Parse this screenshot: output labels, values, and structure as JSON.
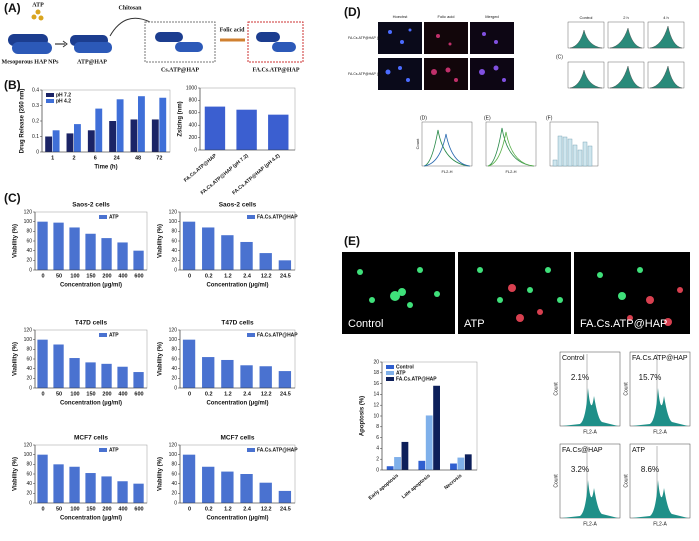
{
  "schematic": {
    "label": "(A)",
    "atp": "ATP",
    "chitosan": "Chitosan",
    "folic_acid": "Folic acid",
    "hap": "Mesoporous HAP NPs",
    "atp_hap": "ATP@HAP",
    "cs_atp_hap": "Cs.ATP@HAP",
    "fa_cs_atp_hap": "FA.Cs.ATP@HAP"
  },
  "panel_labels": {
    "b": "(B)",
    "c": "(C)",
    "d": "(D)",
    "e": "(E)"
  },
  "microscopy_d": {
    "columns": [
      "Hoechst",
      "Folic acid",
      "Merged"
    ],
    "rows": [
      "FA.Cs.ATP@HAP (2 h)",
      "FA.Cs.ATP@HAP (4 h)"
    ],
    "flow_headers": [
      "Control",
      "2 h",
      "4 h"
    ],
    "sublabels": [
      "(C)",
      "(D)",
      "(E)",
      "(F)"
    ],
    "count": "Count",
    "fl2h": "FL2-H"
  },
  "images_e": [
    "Control",
    "ATP",
    "FA.Cs.ATP@HAP"
  ],
  "flow_e": {
    "panels": [
      {
        "title": "Control",
        "percent": "2.1%"
      },
      {
        "title": "FA.Cs.ATP@HAP",
        "percent": "15.7%"
      },
      {
        "title": "FA.Cs@HAP",
        "percent": "3.2%"
      },
      {
        "title": "ATP",
        "percent": "8.6%"
      }
    ],
    "x_label": "FL2-A",
    "y_label": "Count"
  },
  "chart_data": [
    {
      "type": "bar",
      "xlabel": "Time (h)",
      "ylabel": "Drug Release (260 nm)",
      "categories": [
        "1",
        "2",
        "6",
        "24",
        "48",
        "72"
      ],
      "series": [
        {
          "name": "pH 7.2",
          "color": "#1b2466",
          "values": [
            0.1,
            0.12,
            0.14,
            0.2,
            0.21,
            0.21
          ]
        },
        {
          "name": "pH 4.2",
          "color": "#3f6fd8",
          "values": [
            0.14,
            0.18,
            0.28,
            0.34,
            0.36,
            0.35
          ]
        }
      ],
      "ylim": [
        0,
        0.4
      ],
      "yticks": [
        0,
        0.1,
        0.2,
        0.3,
        0.4
      ],
      "legend": "upper left"
    },
    {
      "type": "bar",
      "ylabel": "Zsizing (nm)",
      "categories": [
        "FA.Cs.ATP@HAP",
        "FA.Cs.ATP@HAP (pH 7.2)",
        "FA.Cs.ATP@HAP (pH 4.2)"
      ],
      "series": [
        {
          "color": "#3b5fd0",
          "values": [
            700,
            650,
            570
          ]
        }
      ],
      "ylim": [
        0,
        1000
      ],
      "yticks": [
        0,
        200,
        400,
        600,
        800,
        1000
      ]
    },
    {
      "type": "bar",
      "title": "Saos-2 cells",
      "xlabel": "Concentration (µg/ml)",
      "ylabel": "Viability (%)",
      "categories": [
        "0",
        "50",
        "100",
        "150",
        "200",
        "400",
        "600"
      ],
      "series": [
        {
          "name": "ATP",
          "color": "#4a72d0",
          "values": [
            100,
            98,
            88,
            75,
            66,
            57,
            40
          ]
        }
      ],
      "ylim": [
        0,
        120
      ],
      "yticks": [
        0,
        20,
        40,
        60,
        80,
        100,
        120
      ],
      "legend": "upper right"
    },
    {
      "type": "bar",
      "title": "Saos-2 cells",
      "xlabel": "Concentration (µg/ml)",
      "ylabel": "Viability (%)",
      "categories": [
        "0",
        "0.2",
        "1.2",
        "2.4",
        "12.2",
        "24.5"
      ],
      "series": [
        {
          "name": "FA.Cs.ATP@HAP",
          "color": "#4a72d0",
          "values": [
            100,
            88,
            72,
            58,
            35,
            20
          ]
        }
      ],
      "ylim": [
        0,
        120
      ],
      "yticks": [
        0,
        20,
        40,
        60,
        80,
        100,
        120
      ],
      "legend": "upper right"
    },
    {
      "type": "bar",
      "title": "T47D cells",
      "xlabel": "Concentration (µg/ml)",
      "ylabel": "Viability (%)",
      "categories": [
        "0",
        "50",
        "100",
        "150",
        "200",
        "400",
        "600"
      ],
      "series": [
        {
          "name": "ATP",
          "color": "#4a72d0",
          "values": [
            100,
            90,
            62,
            53,
            50,
            44,
            33
          ]
        }
      ],
      "ylim": [
        0,
        120
      ],
      "yticks": [
        0,
        20,
        40,
        60,
        80,
        100,
        120
      ],
      "legend": "upper right"
    },
    {
      "type": "bar",
      "title": "T47D cells",
      "xlabel": "Concentration (µg/ml)",
      "ylabel": "Viability (%)",
      "categories": [
        "0",
        "0.2",
        "1.2",
        "2.4",
        "12.2",
        "24.5"
      ],
      "series": [
        {
          "name": "FA.Cs.ATP@HAP",
          "color": "#4a72d0",
          "values": [
            100,
            64,
            58,
            47,
            45,
            35
          ]
        }
      ],
      "ylim": [
        0,
        120
      ],
      "yticks": [
        0,
        20,
        40,
        60,
        80,
        100,
        120
      ],
      "legend": "upper right"
    },
    {
      "type": "bar",
      "title": "MCF7 cells",
      "xlabel": "Concentration (µg/ml)",
      "ylabel": "Viability (%)",
      "categories": [
        "0",
        "50",
        "100",
        "150",
        "200",
        "400",
        "600"
      ],
      "series": [
        {
          "name": "ATP",
          "color": "#4a72d0",
          "values": [
            100,
            80,
            75,
            62,
            55,
            45,
            40
          ]
        }
      ],
      "ylim": [
        0,
        120
      ],
      "yticks": [
        0,
        20,
        40,
        60,
        80,
        100,
        120
      ],
      "legend": "upper right"
    },
    {
      "type": "bar",
      "title": "MCF7 cells",
      "xlabel": "Concentration (µg/ml)",
      "ylabel": "Viability (%)",
      "categories": [
        "0",
        "0.2",
        "1.2",
        "2.4",
        "12.2",
        "24.5"
      ],
      "series": [
        {
          "name": "FA.Cs.ATP@HAP",
          "color": "#4a72d0",
          "values": [
            100,
            75,
            65,
            60,
            42,
            25
          ]
        }
      ],
      "ylim": [
        0,
        120
      ],
      "yticks": [
        0,
        20,
        40,
        60,
        80,
        100,
        120
      ],
      "legend": "upper right"
    },
    {
      "type": "bar",
      "ylabel": "Apoptosis (%)",
      "categories": [
        "Early apoptosis",
        "Late apoptosis",
        "Necrosis"
      ],
      "series": [
        {
          "name": "Control",
          "color": "#2f5fd0",
          "values": [
            0.7,
            1.7,
            1.2
          ]
        },
        {
          "name": "ATP",
          "color": "#7fb0ea",
          "values": [
            2.4,
            10.1,
            2.3
          ]
        },
        {
          "name": "FA.Cs.ATP@HAP",
          "color": "#0d1f5a",
          "values": [
            5.2,
            15.6,
            2.9
          ]
        }
      ],
      "ylim": [
        0,
        20
      ],
      "yticks": [
        0,
        2,
        4,
        6,
        8,
        10,
        12,
        14,
        16,
        18,
        20
      ],
      "legend": "upper left"
    }
  ]
}
